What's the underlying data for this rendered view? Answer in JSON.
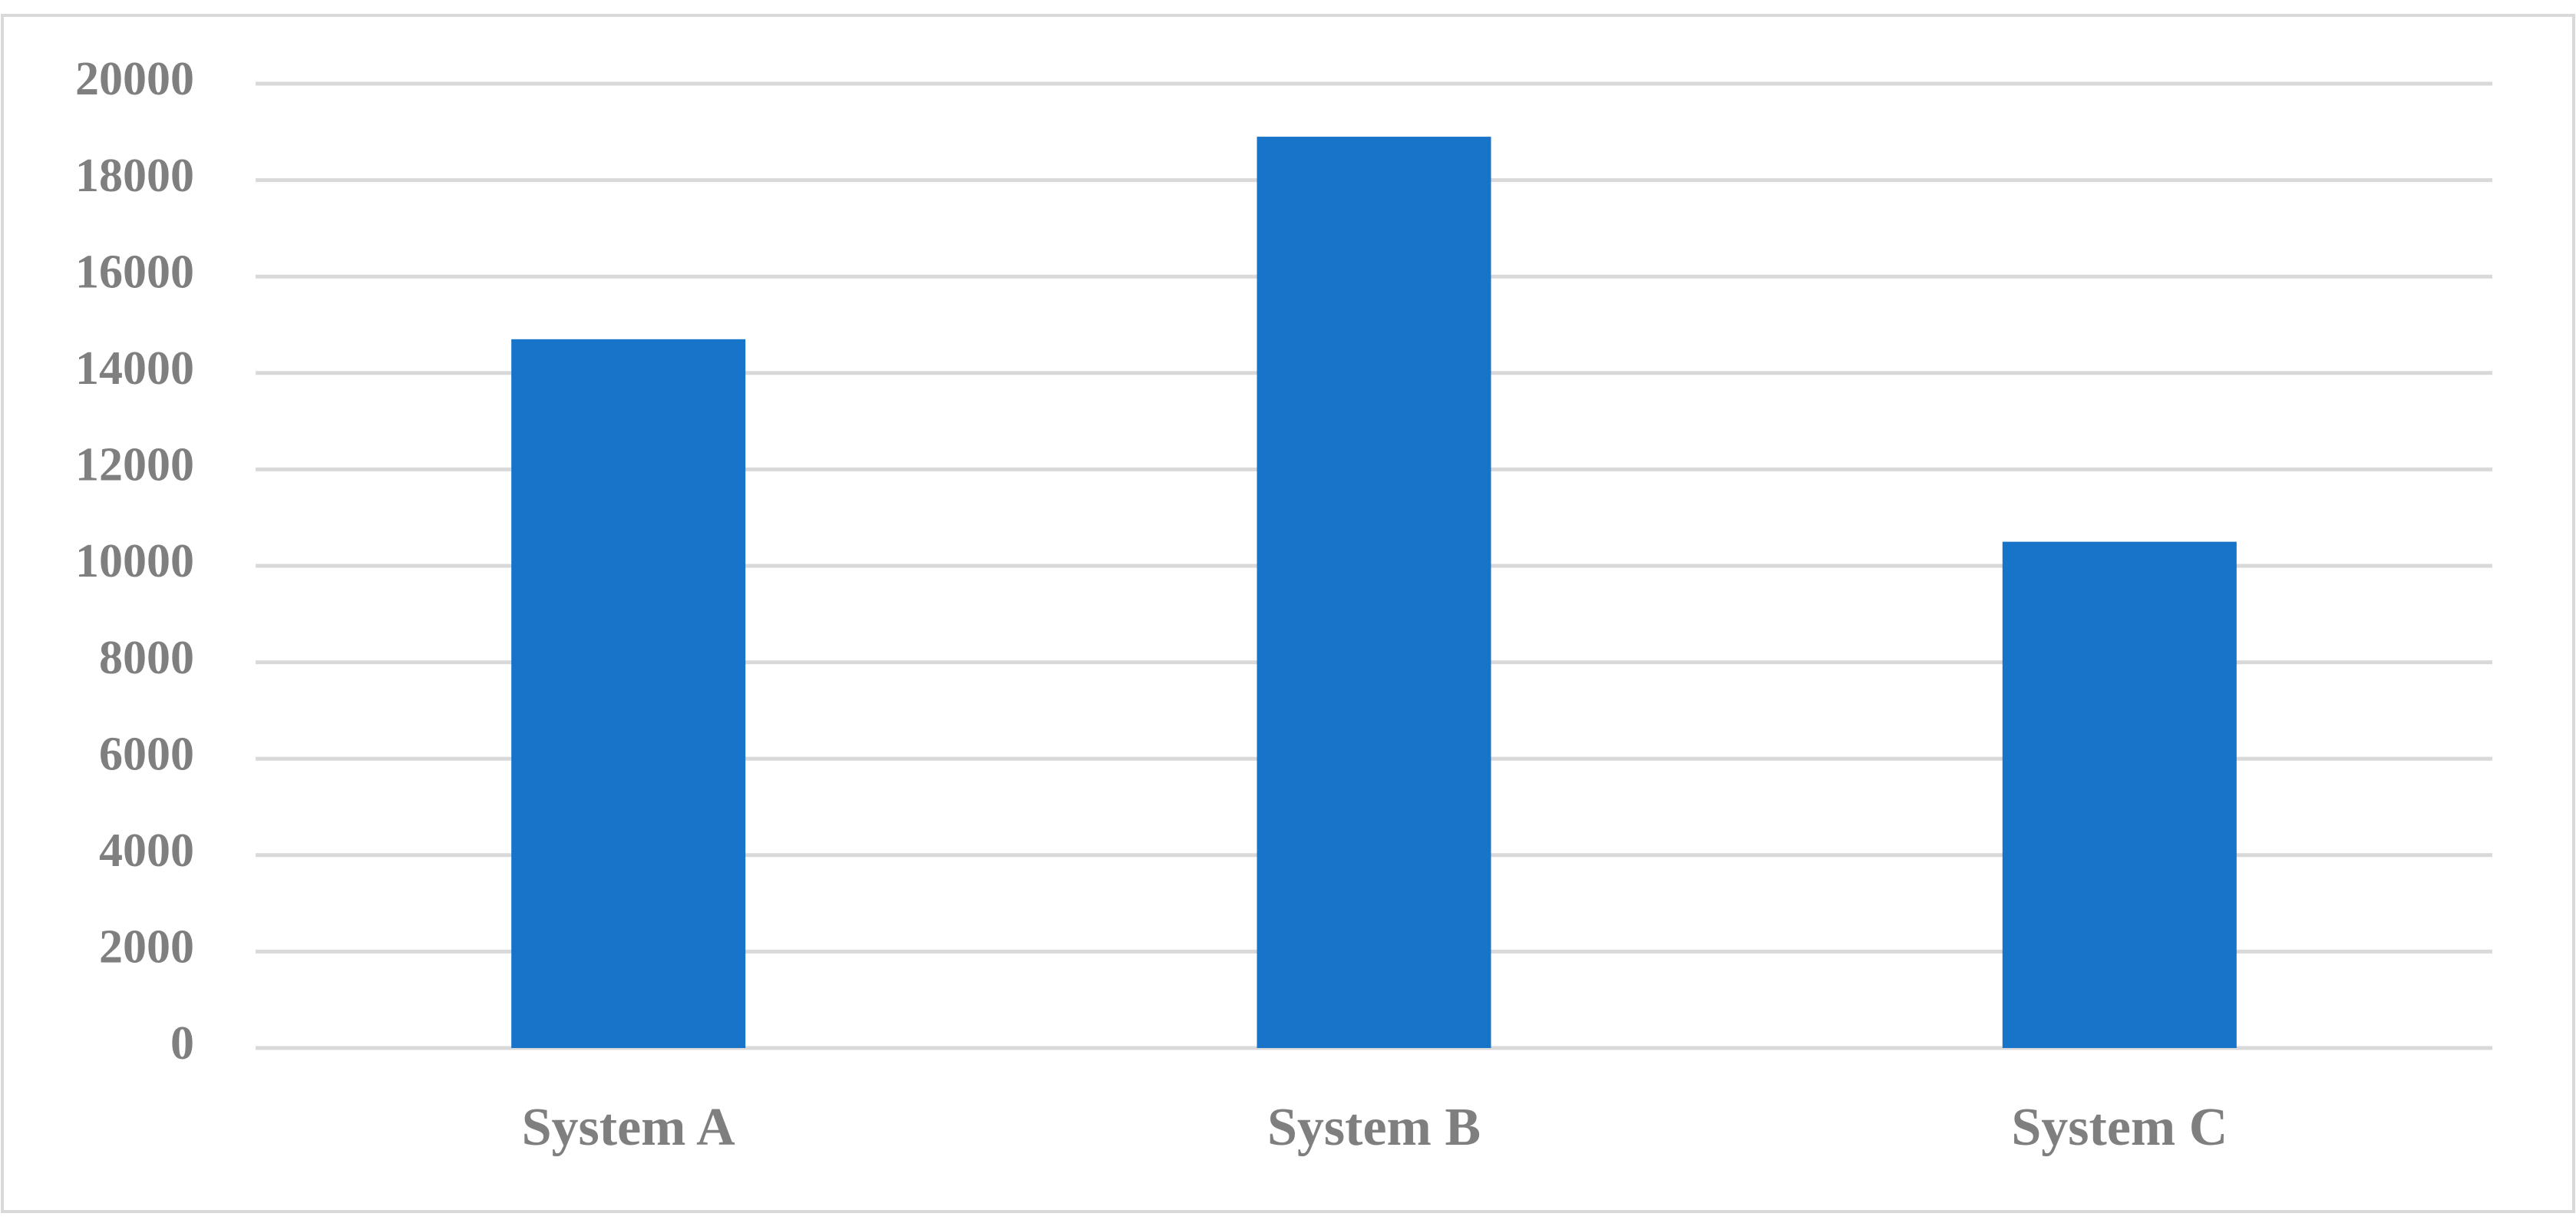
{
  "chart_data": {
    "type": "bar",
    "categories": [
      "System A",
      "System B",
      "System C"
    ],
    "values": [
      14700,
      18900,
      10500
    ],
    "color": "#1874c8",
    "ylim": [
      0,
      20000
    ],
    "yticks": [
      0,
      2000,
      4000,
      6000,
      8000,
      10000,
      12000,
      14000,
      16000,
      18000,
      20000
    ],
    "grid": true
  }
}
